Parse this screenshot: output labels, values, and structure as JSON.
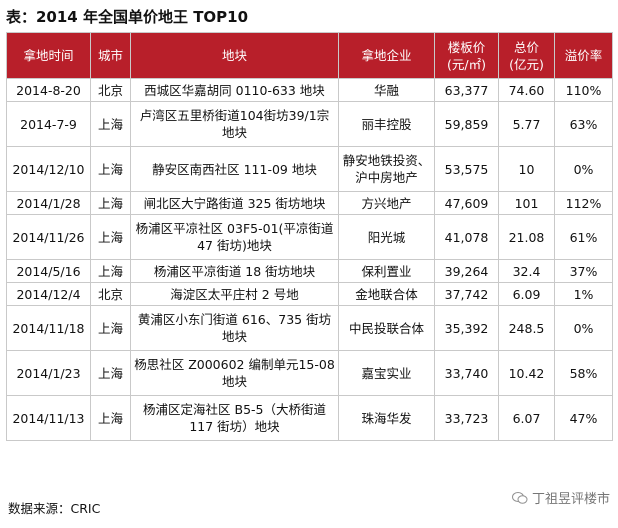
{
  "title": "表：2014 年全国单价地王 TOP10",
  "headers": {
    "date": "拿地时间",
    "city": "城市",
    "plot": "地块",
    "company": "拿地企业",
    "floor_price": "楼板价\n(元/㎡)",
    "total_price": "总价\n(亿元)",
    "premium": "溢价率"
  },
  "rows": [
    {
      "date": "2014-8-20",
      "city": "北京",
      "plot": "西城区华嘉胡同 0110-633 地块",
      "company": "华融",
      "floor_price": "63,377",
      "total_price": "74.60",
      "premium": "110%"
    },
    {
      "date": "2014-7-9",
      "city": "上海",
      "plot": "卢湾区五里桥街道104街坊39/1宗地块",
      "company": "丽丰控股",
      "floor_price": "59,859",
      "total_price": "5.77",
      "premium": "63%"
    },
    {
      "date": "2014/12/10",
      "city": "上海",
      "plot": "静安区南西社区 111-09 地块",
      "company": "静安地铁投资、沪中房地产",
      "floor_price": "53,575",
      "total_price": "10",
      "premium": "0%"
    },
    {
      "date": "2014/1/28",
      "city": "上海",
      "plot": "闸北区大宁路街道 325 街坊地块",
      "company": "方兴地产",
      "floor_price": "47,609",
      "total_price": "101",
      "premium": "112%"
    },
    {
      "date": "2014/11/26",
      "city": "上海",
      "plot": "杨浦区平凉社区 03F5-01(平凉街道 47 街坊)地块",
      "company": "阳光城",
      "floor_price": "41,078",
      "total_price": "21.08",
      "premium": "61%"
    },
    {
      "date": "2014/5/16",
      "city": "上海",
      "plot": "杨浦区平凉街道 18 街坊地块",
      "company": "保利置业",
      "floor_price": "39,264",
      "total_price": "32.4",
      "premium": "37%"
    },
    {
      "date": "2014/12/4",
      "city": "北京",
      "plot": "海淀区太平庄村 2 号地",
      "company": "金地联合体",
      "floor_price": "37,742",
      "total_price": "6.09",
      "premium": "1%"
    },
    {
      "date": "2014/11/18",
      "city": "上海",
      "plot": "黄浦区小东门街道 616、735 街坊地块",
      "company": "中民投联合体",
      "floor_price": "35,392",
      "total_price": "248.5",
      "premium": "0%"
    },
    {
      "date": "2014/1/23",
      "city": "上海",
      "plot": "杨思社区 Z000602 编制单元15-08 地块",
      "company": "嘉宝实业",
      "floor_price": "33,740",
      "total_price": "10.42",
      "premium": "58%"
    },
    {
      "date": "2014/11/13",
      "city": "上海",
      "plot": "杨浦区定海社区 B5-5（大桥街道117 街坊）地块",
      "company": "珠海华发",
      "floor_price": "33,723",
      "total_price": "6.07",
      "premium": "47%"
    }
  ],
  "source": "数据来源：CRIC",
  "watermark": "丁祖昱评楼市"
}
